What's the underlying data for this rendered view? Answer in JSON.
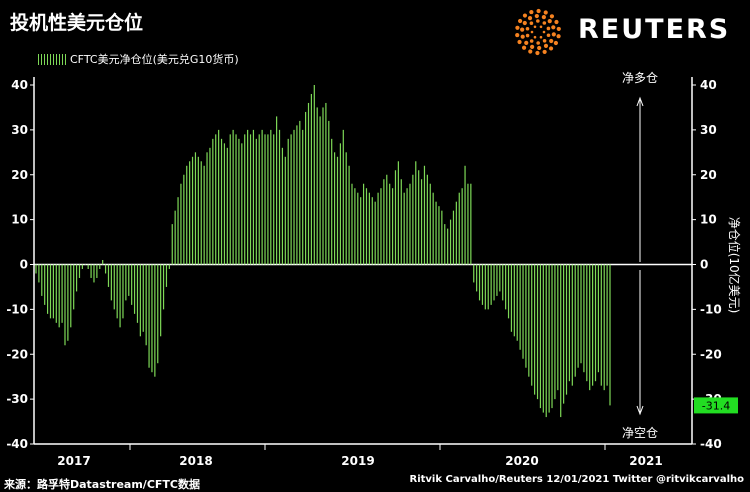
{
  "title": "投机性美元仓位",
  "brand": "REUTERS",
  "legend_label": "CFTC美元净仓位(美元兑G10货币)",
  "right_axis_label": "净仓位(10亿美元)",
  "annotations": {
    "long": "净多仓",
    "short": "净空仓",
    "last_value": "-31.4"
  },
  "footer": {
    "source": "来源：路孚特Datastream/CFTC数据",
    "credit": "Ritvik Carvalho/Reuters 12/01/2021 Twitter @ritvikcarvalho"
  },
  "colors": {
    "bars": "#7ed957",
    "last_value_bg": "#22dd22",
    "background": "#000000"
  },
  "chart_data": {
    "type": "bar",
    "ylim": [
      -40,
      40
    ],
    "yticks": [
      40,
      30,
      20,
      10,
      0,
      -10,
      -20,
      -30,
      -40
    ],
    "xticks": [
      "2017",
      "2018",
      "2019",
      "2020",
      "2021"
    ],
    "x_start": "2016-07",
    "frequency": "weekly",
    "grid": false,
    "values": [
      -2,
      -4,
      -7,
      -9,
      -11,
      -12,
      -12,
      -13,
      -14,
      -13,
      -18,
      -17,
      -14,
      -10,
      -6,
      -3,
      -1,
      0,
      -1,
      -3,
      -4,
      -3,
      -1,
      1,
      -2,
      -5,
      -8,
      -10,
      -12,
      -14,
      -12,
      -8,
      -7,
      -9,
      -11,
      -13,
      -16,
      -15,
      -18,
      -23,
      -24,
      -25,
      -22,
      -16,
      -10,
      -5,
      -1,
      9,
      12,
      15,
      18,
      20,
      22,
      23,
      24,
      25,
      24,
      23,
      22,
      25,
      26,
      28,
      29,
      30,
      28,
      27,
      26,
      29,
      30,
      29,
      28,
      27,
      29,
      30,
      29,
      30,
      28,
      29,
      30,
      29,
      29,
      30,
      29,
      33,
      30,
      26,
      24,
      28,
      29,
      30,
      31,
      32,
      30,
      34,
      36,
      38,
      40,
      35,
      33,
      35,
      36,
      32,
      28,
      25,
      24,
      27,
      30,
      25,
      22,
      18,
      17,
      16,
      15,
      18,
      17,
      16,
      15,
      14,
      16,
      17,
      19,
      20,
      18,
      17,
      21,
      23,
      19,
      16,
      17,
      18,
      20,
      23,
      21,
      19,
      22,
      20,
      18,
      16,
      14,
      13,
      12,
      9,
      8,
      10,
      12,
      14,
      16,
      17,
      22,
      18,
      18,
      -4,
      -6,
      -8,
      -9,
      -10,
      -10,
      -9,
      -8,
      -7,
      -6,
      -8,
      -10,
      -12,
      -15,
      -16,
      -17,
      -19,
      -21,
      -23,
      -25,
      -27,
      -29,
      -30,
      -32,
      -33,
      -34,
      -33,
      -32,
      -30,
      -28,
      -34,
      -31,
      -29,
      -26,
      -27,
      -25,
      -23,
      -22,
      -24,
      -26,
      -28,
      -27,
      -26,
      -24,
      -27,
      -28,
      -27,
      -31.4
    ]
  }
}
